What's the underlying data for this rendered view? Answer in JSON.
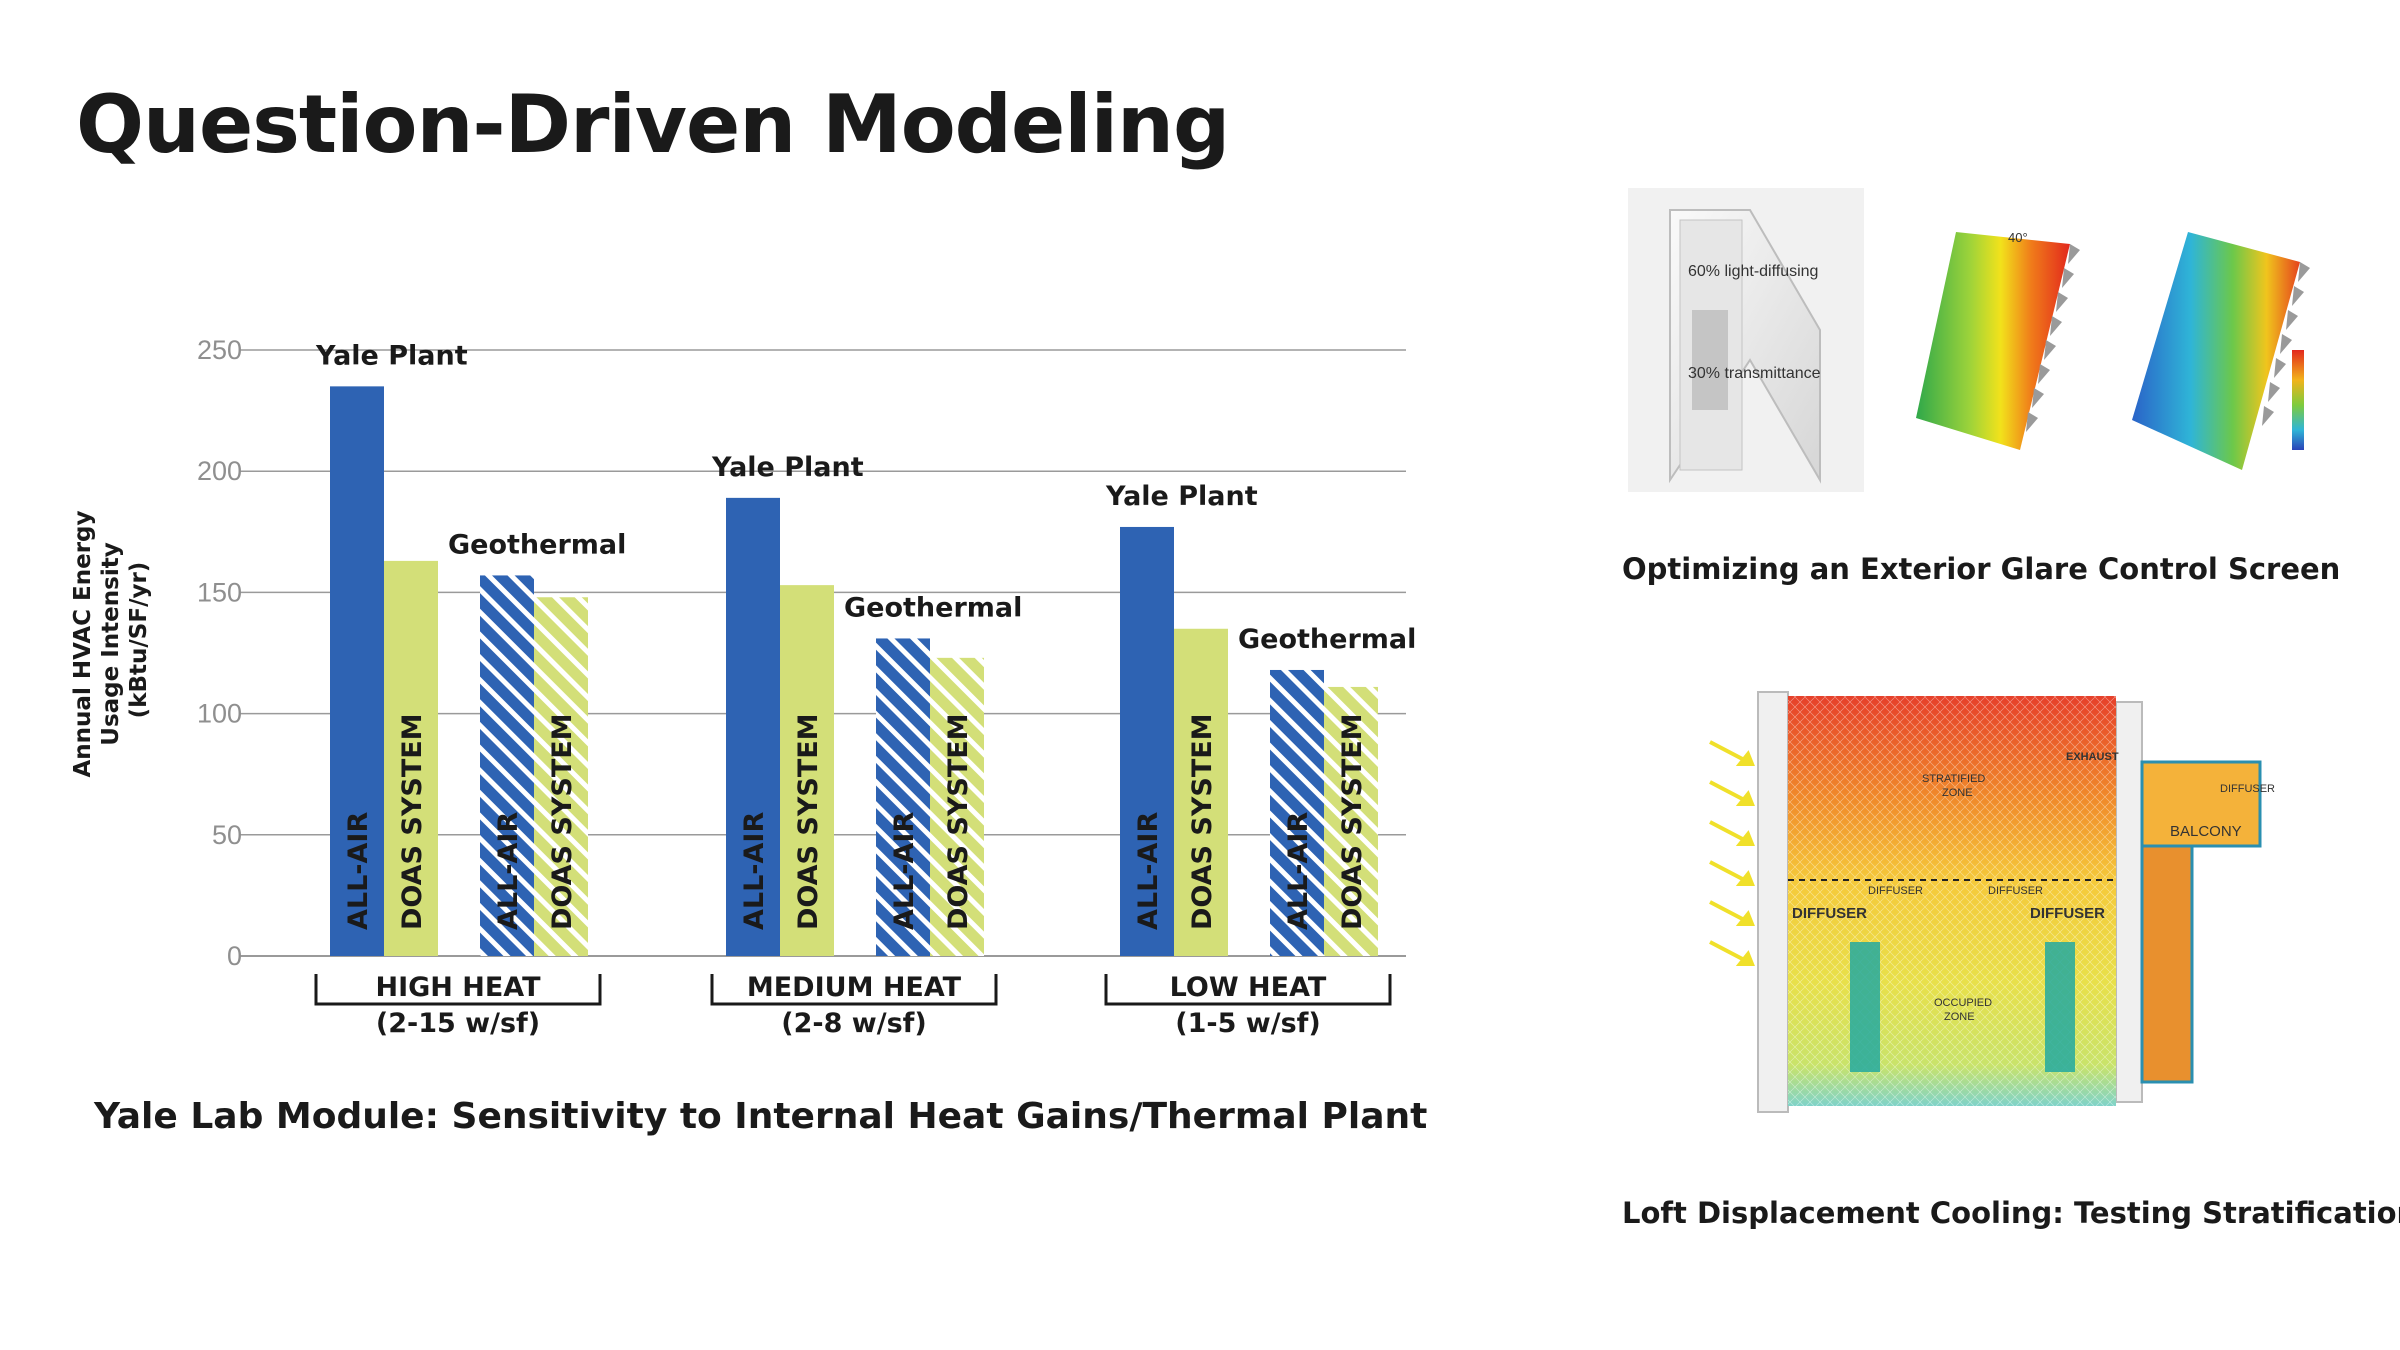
{
  "slide": {
    "title": "Question-Driven Modeling"
  },
  "chart_data": {
    "type": "bar",
    "ylabel_lines": [
      "Annual HVAC Energy",
      "Usage Intensity",
      "(kBtu/SF/yr)"
    ],
    "yticks": [
      0,
      50,
      100,
      150,
      200,
      250
    ],
    "ylim": [
      0,
      250
    ],
    "grid": true,
    "groups": [
      {
        "name": "HIGH HEAT",
        "range": "(2-15 w/sf)",
        "plant_labels": [
          "Yale Plant",
          "Geothermal"
        ],
        "bars": [
          {
            "label": "ALL-AIR",
            "plant": "Yale Plant",
            "value": 235
          },
          {
            "label": "DOAS SYSTEM",
            "plant": "Yale Plant",
            "value": 163
          },
          {
            "label": "ALL-AIR",
            "plant": "Geothermal",
            "value": 157
          },
          {
            "label": "DOAS SYSTEM",
            "plant": "Geothermal",
            "value": 148
          }
        ]
      },
      {
        "name": "MEDIUM HEAT",
        "range": "(2-8 w/sf)",
        "plant_labels": [
          "Yale Plant",
          "Geothermal"
        ],
        "bars": [
          {
            "label": "ALL-AIR",
            "plant": "Yale Plant",
            "value": 189
          },
          {
            "label": "DOAS SYSTEM",
            "plant": "Yale Plant",
            "value": 153
          },
          {
            "label": "ALL-AIR",
            "plant": "Geothermal",
            "value": 131
          },
          {
            "label": "DOAS SYSTEM",
            "plant": "Geothermal",
            "value": 123
          }
        ]
      },
      {
        "name": "LOW HEAT",
        "range": "(1-5 w/sf)",
        "plant_labels": [
          "Yale Plant",
          "Geothermal"
        ],
        "bars": [
          {
            "label": "ALL-AIR",
            "plant": "Yale Plant",
            "value": 177
          },
          {
            "label": "DOAS SYSTEM",
            "plant": "Yale Plant",
            "value": 135
          },
          {
            "label": "ALL-AIR",
            "plant": "Geothermal",
            "value": 118
          },
          {
            "label": "DOAS SYSTEM",
            "plant": "Geothermal",
            "value": 111
          }
        ]
      }
    ],
    "colors": {
      "all_air": "#2e63b3",
      "doas": "#d3df78",
      "hatch_light": "#ffffff",
      "grid": "#9a9a9a",
      "tick_text": "#8f8f8f"
    }
  },
  "captions": {
    "chart": "Yale Lab Module: Sensitivity to Internal Heat Gains/Thermal Plant",
    "glare": "Optimizing an Exterior Glare Control Screen",
    "loft": "Loft Displacement Cooling: Testing Stratification"
  },
  "glare_figure": {
    "label_top": "60% light-diffusing",
    "label_bottom": "30% transmittance",
    "angle": "40°"
  },
  "loft_figure": {
    "labels": {
      "exhaust": "EXHAUST",
      "stratified_1": "STRATIFIED",
      "stratified_2": "ZONE",
      "diffuser_small_left": "DIFFUSER",
      "diffuser_small_right": "DIFFUSER",
      "diffuser_left": "DIFFUSER",
      "diffuser_right": "DIFFUSER",
      "diffuser_balcony": "DIFFUSER",
      "balcony": "BALCONY",
      "occupied_1": "OCCUPIED",
      "occupied_2": "ZONE"
    }
  }
}
